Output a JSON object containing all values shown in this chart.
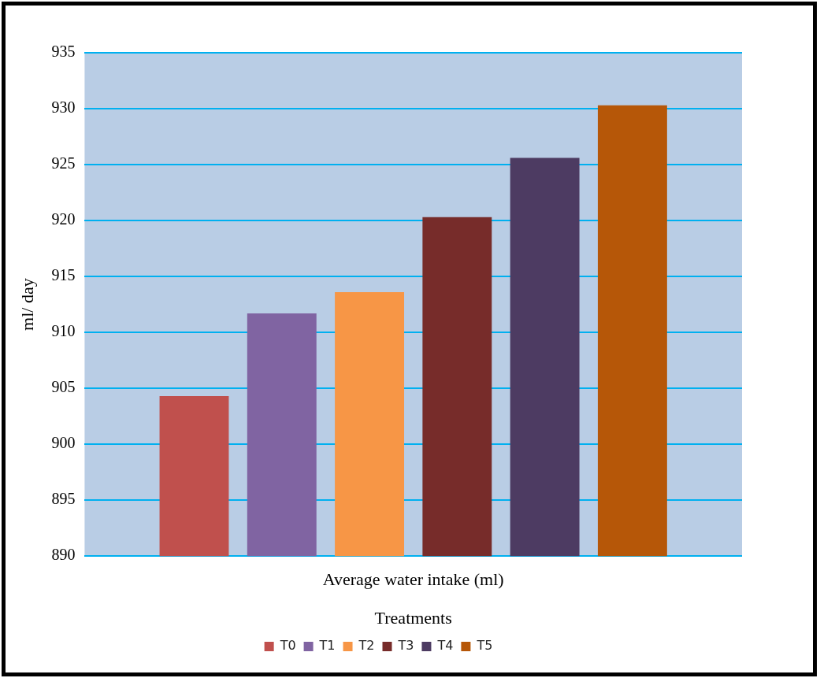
{
  "chart_data": {
    "type": "bar",
    "categories": [
      "Average water intake (ml)"
    ],
    "xlabel": "Treatments",
    "ylabel": "ml/ day",
    "series": [
      {
        "name": "T0",
        "color": "#c0504d",
        "values": [
          904.3
        ]
      },
      {
        "name": "T1",
        "color": "#8064a2",
        "values": [
          911.7
        ]
      },
      {
        "name": "T2",
        "color": "#f79646",
        "values": [
          913.6
        ]
      },
      {
        "name": "T3",
        "color": "#772c2a",
        "values": [
          920.3
        ]
      },
      {
        "name": "T4",
        "color": "#4d3b62",
        "values": [
          925.6
        ]
      },
      {
        "name": "T5",
        "color": "#b65708",
        "values": [
          930.3
        ]
      }
    ],
    "ylim": [
      890,
      935
    ],
    "yticks": [
      890,
      895,
      900,
      905,
      910,
      915,
      920,
      925,
      930,
      935
    ],
    "grid": "y",
    "legend": "bottom"
  }
}
